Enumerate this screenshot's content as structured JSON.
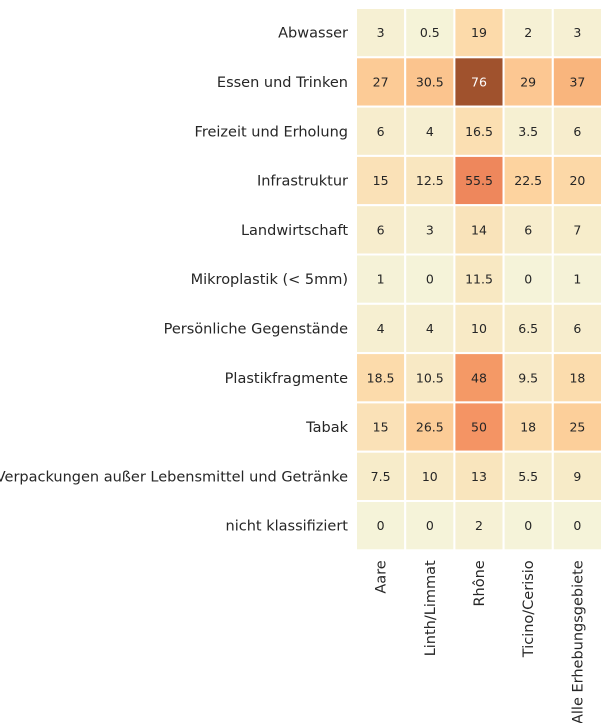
{
  "chart_data": {
    "type": "heatmap",
    "rows": [
      "Abwasser",
      "Essen und Trinken",
      "Freizeit und Erholung",
      "Infrastruktur",
      "Landwirtschaft",
      "Mikroplastik (< 5mm)",
      "Persönliche Gegenstände",
      "Plastikfragmente",
      "Tabak",
      "Verpackungen außer Lebensmittel und Getränke",
      "nicht klassifiziert"
    ],
    "columns": [
      "Aare",
      "Linth/Limmat",
      "Rhône",
      "Ticino/Cerisio",
      "Alle Erhebungsgebiete"
    ],
    "values": [
      [
        3,
        0.5,
        19,
        2,
        3
      ],
      [
        27,
        30.5,
        76,
        29,
        37
      ],
      [
        6,
        4,
        16.5,
        3.5,
        6
      ],
      [
        15,
        12.5,
        55.5,
        22.5,
        20
      ],
      [
        6,
        3,
        14,
        6,
        7
      ],
      [
        1,
        0,
        11.5,
        0,
        1
      ],
      [
        4,
        4,
        10,
        6.5,
        6
      ],
      [
        18.5,
        10.5,
        48,
        9.5,
        18
      ],
      [
        15,
        26.5,
        50,
        18,
        25
      ],
      [
        7.5,
        10,
        13,
        5.5,
        9
      ],
      [
        0,
        0,
        2,
        0,
        0
      ]
    ],
    "colorscale": [
      "#f5f3d9",
      "#f8e9c4",
      "#fdd5a1",
      "#fbc08a",
      "#f6a46a",
      "#f28a60",
      "#d26b3a",
      "#a0522d"
    ],
    "vmin": 0,
    "vmax": 76,
    "colorbar": false
  }
}
